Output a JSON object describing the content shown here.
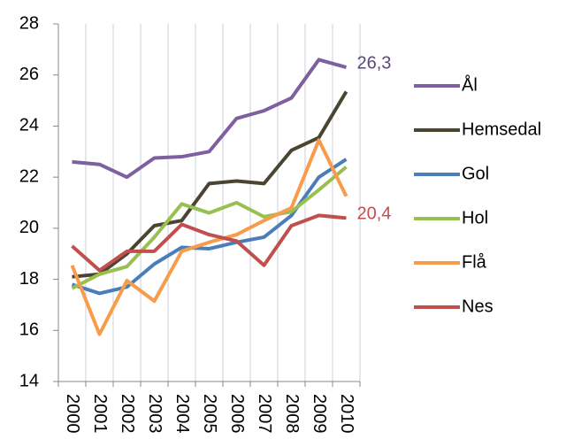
{
  "chart_data": {
    "type": "line",
    "categories": [
      "2000",
      "2001",
      "2002",
      "2003",
      "2004",
      "2005",
      "2006",
      "2007",
      "2008",
      "2009",
      "2010"
    ],
    "series": [
      {
        "name": "Ål",
        "color": "#7e5fa0",
        "values": [
          22.6,
          22.5,
          22.0,
          22.75,
          22.8,
          23.0,
          24.3,
          24.6,
          25.1,
          26.6,
          26.3
        ],
        "value_labels": [
          null,
          null,
          null,
          null,
          null,
          null,
          null,
          null,
          null,
          null,
          "26,3"
        ],
        "label_color": "#5a4a78"
      },
      {
        "name": "Hemsedal",
        "color": "#4a4530",
        "values": [
          18.1,
          18.2,
          19.0,
          20.1,
          20.3,
          21.75,
          21.85,
          21.75,
          23.05,
          23.55,
          25.35
        ]
      },
      {
        "name": "Gol",
        "color": "#4a7ebb",
        "values": [
          17.8,
          17.45,
          17.7,
          18.6,
          19.25,
          19.2,
          19.45,
          19.65,
          20.5,
          22.0,
          22.7
        ]
      },
      {
        "name": "Hol",
        "color": "#98c050",
        "values": [
          17.65,
          18.2,
          18.5,
          19.65,
          20.95,
          20.6,
          21.0,
          20.45,
          20.65,
          21.5,
          22.4
        ]
      },
      {
        "name": "Flå",
        "color": "#f79c4a",
        "values": [
          18.55,
          15.85,
          17.95,
          17.15,
          19.1,
          19.45,
          19.75,
          20.3,
          20.8,
          23.45,
          21.25
        ]
      },
      {
        "name": "Nes",
        "color": "#c0504d",
        "values": [
          19.3,
          18.35,
          19.1,
          19.1,
          20.15,
          19.75,
          19.5,
          18.55,
          20.1,
          20.5,
          20.4
        ],
        "value_labels": [
          null,
          null,
          null,
          null,
          null,
          null,
          null,
          null,
          null,
          null,
          "20,4"
        ],
        "label_color": "#c0504d"
      }
    ],
    "ylim": [
      14,
      28
    ],
    "yticks": [
      14,
      16,
      18,
      20,
      22,
      24,
      26,
      28
    ],
    "grid": true,
    "legend": "right"
  }
}
